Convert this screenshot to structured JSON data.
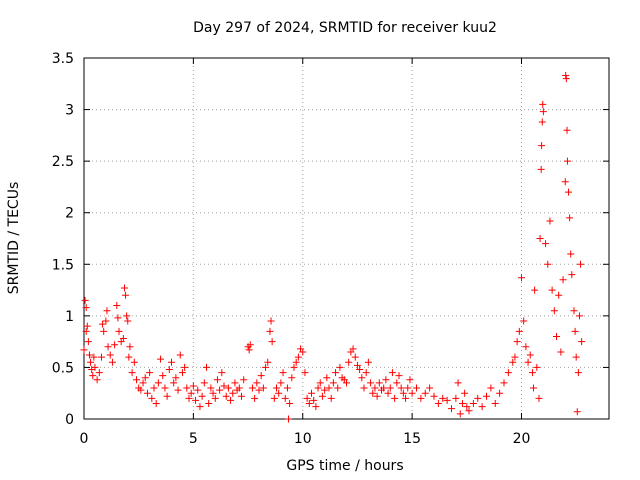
{
  "chart_data": {
    "type": "scatter",
    "title": "Day 297 of 2024, SRMTID for receiver kuu2",
    "xlabel": "GPS time / hours",
    "ylabel": "SRMTID / TECUs",
    "xlim": [
      0,
      24
    ],
    "ylim": [
      0,
      3.5
    ],
    "xticks": [
      0,
      5,
      10,
      15,
      20
    ],
    "xtick_labels": [
      "0",
      "5",
      "10",
      "15",
      "20"
    ],
    "yticks": [
      0,
      0.5,
      1,
      1.5,
      2,
      2.5,
      3,
      3.5
    ],
    "ytick_labels": [
      "0",
      "0.5",
      "1",
      "1.5",
      "2",
      "2.5",
      "3",
      "3.5"
    ],
    "grid": true,
    "marker": "plus",
    "color": "#ff0000",
    "series": [
      {
        "name": "SRMTID",
        "points": [
          [
            0.0,
            0.67
          ],
          [
            0.05,
            1.15
          ],
          [
            0.1,
            1.08
          ],
          [
            0.1,
            0.85
          ],
          [
            0.15,
            0.9
          ],
          [
            0.2,
            0.75
          ],
          [
            0.25,
            0.62
          ],
          [
            0.3,
            0.55
          ],
          [
            0.35,
            0.48
          ],
          [
            0.4,
            0.42
          ],
          [
            0.45,
            0.6
          ],
          [
            0.5,
            0.5
          ],
          [
            0.6,
            0.38
          ],
          [
            0.7,
            0.45
          ],
          [
            0.8,
            0.6
          ],
          [
            0.85,
            0.92
          ],
          [
            0.9,
            0.85
          ],
          [
            1.0,
            0.95
          ],
          [
            1.05,
            1.05
          ],
          [
            1.1,
            0.7
          ],
          [
            1.2,
            0.62
          ],
          [
            1.3,
            0.55
          ],
          [
            1.4,
            0.72
          ],
          [
            1.5,
            1.1
          ],
          [
            1.55,
            0.98
          ],
          [
            1.6,
            0.85
          ],
          [
            1.7,
            0.75
          ],
          [
            1.8,
            0.78
          ],
          [
            1.85,
            1.27
          ],
          [
            1.9,
            1.2
          ],
          [
            1.95,
            1.0
          ],
          [
            2.0,
            0.95
          ],
          [
            2.05,
            0.6
          ],
          [
            2.1,
            0.7
          ],
          [
            2.2,
            0.45
          ],
          [
            2.3,
            0.55
          ],
          [
            2.4,
            0.38
          ],
          [
            2.5,
            0.3
          ],
          [
            2.6,
            0.28
          ],
          [
            2.7,
            0.35
          ],
          [
            2.8,
            0.4
          ],
          [
            2.9,
            0.25
          ],
          [
            3.0,
            0.45
          ],
          [
            3.1,
            0.2
          ],
          [
            3.2,
            0.3
          ],
          [
            3.3,
            0.15
          ],
          [
            3.4,
            0.35
          ],
          [
            3.5,
            0.58
          ],
          [
            3.6,
            0.42
          ],
          [
            3.7,
            0.3
          ],
          [
            3.8,
            0.22
          ],
          [
            3.9,
            0.48
          ],
          [
            4.0,
            0.55
          ],
          [
            4.1,
            0.35
          ],
          [
            4.2,
            0.4
          ],
          [
            4.3,
            0.28
          ],
          [
            4.4,
            0.62
          ],
          [
            4.5,
            0.45
          ],
          [
            4.6,
            0.5
          ],
          [
            4.7,
            0.3
          ],
          [
            4.8,
            0.2
          ],
          [
            4.9,
            0.25
          ],
          [
            5.0,
            0.32
          ],
          [
            5.1,
            0.18
          ],
          [
            5.2,
            0.28
          ],
          [
            5.3,
            0.12
          ],
          [
            5.4,
            0.22
          ],
          [
            5.5,
            0.35
          ],
          [
            5.6,
            0.5
          ],
          [
            5.7,
            0.15
          ],
          [
            5.8,
            0.3
          ],
          [
            5.9,
            0.25
          ],
          [
            6.0,
            0.2
          ],
          [
            6.1,
            0.38
          ],
          [
            6.2,
            0.28
          ],
          [
            6.3,
            0.45
          ],
          [
            6.4,
            0.32
          ],
          [
            6.5,
            0.22
          ],
          [
            6.6,
            0.3
          ],
          [
            6.7,
            0.18
          ],
          [
            6.8,
            0.25
          ],
          [
            6.9,
            0.35
          ],
          [
            7.0,
            0.28
          ],
          [
            7.1,
            0.3
          ],
          [
            7.2,
            0.22
          ],
          [
            7.3,
            0.38
          ],
          [
            7.5,
            0.7
          ],
          [
            7.55,
            0.67
          ],
          [
            7.6,
            0.72
          ],
          [
            7.7,
            0.3
          ],
          [
            7.8,
            0.2
          ],
          [
            7.9,
            0.35
          ],
          [
            8.0,
            0.28
          ],
          [
            8.1,
            0.42
          ],
          [
            8.2,
            0.3
          ],
          [
            8.3,
            0.5
          ],
          [
            8.4,
            0.55
          ],
          [
            8.5,
            0.85
          ],
          [
            8.55,
            0.95
          ],
          [
            8.6,
            0.75
          ],
          [
            8.7,
            0.2
          ],
          [
            8.8,
            0.3
          ],
          [
            8.9,
            0.25
          ],
          [
            9.0,
            0.35
          ],
          [
            9.1,
            0.45
          ],
          [
            9.2,
            0.2
          ],
          [
            9.3,
            0.3
          ],
          [
            9.35,
            0.0
          ],
          [
            9.4,
            0.15
          ],
          [
            9.5,
            0.4
          ],
          [
            9.6,
            0.5
          ],
          [
            9.7,
            0.55
          ],
          [
            9.8,
            0.6
          ],
          [
            9.9,
            0.68
          ],
          [
            10.0,
            0.65
          ],
          [
            10.1,
            0.45
          ],
          [
            10.2,
            0.2
          ],
          [
            10.3,
            0.15
          ],
          [
            10.4,
            0.25
          ],
          [
            10.5,
            0.18
          ],
          [
            10.6,
            0.12
          ],
          [
            10.7,
            0.3
          ],
          [
            10.8,
            0.35
          ],
          [
            10.9,
            0.22
          ],
          [
            11.0,
            0.28
          ],
          [
            11.1,
            0.4
          ],
          [
            11.2,
            0.3
          ],
          [
            11.3,
            0.2
          ],
          [
            11.4,
            0.35
          ],
          [
            11.5,
            0.45
          ],
          [
            11.6,
            0.3
          ],
          [
            11.7,
            0.5
          ],
          [
            11.8,
            0.4
          ],
          [
            11.9,
            0.38
          ],
          [
            12.0,
            0.35
          ],
          [
            12.1,
            0.55
          ],
          [
            12.2,
            0.65
          ],
          [
            12.3,
            0.68
          ],
          [
            12.4,
            0.6
          ],
          [
            12.5,
            0.52
          ],
          [
            12.6,
            0.48
          ],
          [
            12.7,
            0.4
          ],
          [
            12.8,
            0.3
          ],
          [
            12.9,
            0.45
          ],
          [
            13.0,
            0.55
          ],
          [
            13.1,
            0.35
          ],
          [
            13.2,
            0.25
          ],
          [
            13.3,
            0.3
          ],
          [
            13.4,
            0.22
          ],
          [
            13.5,
            0.35
          ],
          [
            13.6,
            0.28
          ],
          [
            13.7,
            0.3
          ],
          [
            13.8,
            0.38
          ],
          [
            13.9,
            0.25
          ],
          [
            14.0,
            0.3
          ],
          [
            14.1,
            0.45
          ],
          [
            14.2,
            0.2
          ],
          [
            14.3,
            0.35
          ],
          [
            14.4,
            0.42
          ],
          [
            14.5,
            0.3
          ],
          [
            14.6,
            0.25
          ],
          [
            14.7,
            0.2
          ],
          [
            14.8,
            0.3
          ],
          [
            14.9,
            0.38
          ],
          [
            15.0,
            0.25
          ],
          [
            15.2,
            0.3
          ],
          [
            15.4,
            0.2
          ],
          [
            15.6,
            0.25
          ],
          [
            15.8,
            0.3
          ],
          [
            16.0,
            0.22
          ],
          [
            16.2,
            0.15
          ],
          [
            16.4,
            0.2
          ],
          [
            16.6,
            0.18
          ],
          [
            16.8,
            0.1
          ],
          [
            17.0,
            0.2
          ],
          [
            17.1,
            0.35
          ],
          [
            17.2,
            0.05
          ],
          [
            17.3,
            0.15
          ],
          [
            17.4,
            0.25
          ],
          [
            17.5,
            0.12
          ],
          [
            17.6,
            0.08
          ],
          [
            17.8,
            0.15
          ],
          [
            18.0,
            0.2
          ],
          [
            18.2,
            0.12
          ],
          [
            18.4,
            0.22
          ],
          [
            18.6,
            0.3
          ],
          [
            18.8,
            0.15
          ],
          [
            19.0,
            0.25
          ],
          [
            19.2,
            0.35
          ],
          [
            19.4,
            0.45
          ],
          [
            19.6,
            0.55
          ],
          [
            19.7,
            0.6
          ],
          [
            19.8,
            0.75
          ],
          [
            19.9,
            0.85
          ],
          [
            20.0,
            1.37
          ],
          [
            20.1,
            0.95
          ],
          [
            20.2,
            0.7
          ],
          [
            20.3,
            0.55
          ],
          [
            20.4,
            0.62
          ],
          [
            20.5,
            0.45
          ],
          [
            20.55,
            0.3
          ],
          [
            20.6,
            1.25
          ],
          [
            20.7,
            0.5
          ],
          [
            20.8,
            0.2
          ],
          [
            20.85,
            1.75
          ],
          [
            20.9,
            2.42
          ],
          [
            20.92,
            2.65
          ],
          [
            20.95,
            2.88
          ],
          [
            20.97,
            3.05
          ],
          [
            21.0,
            2.98
          ],
          [
            21.1,
            1.7
          ],
          [
            21.2,
            1.5
          ],
          [
            21.3,
            1.92
          ],
          [
            21.4,
            1.25
          ],
          [
            21.5,
            1.05
          ],
          [
            21.6,
            0.8
          ],
          [
            21.7,
            1.2
          ],
          [
            21.8,
            0.65
          ],
          [
            21.9,
            1.35
          ],
          [
            22.0,
            2.3
          ],
          [
            22.02,
            3.33
          ],
          [
            22.05,
            3.3
          ],
          [
            22.08,
            2.8
          ],
          [
            22.1,
            2.5
          ],
          [
            22.15,
            2.2
          ],
          [
            22.2,
            1.95
          ],
          [
            22.25,
            1.6
          ],
          [
            22.3,
            1.4
          ],
          [
            22.4,
            1.05
          ],
          [
            22.45,
            0.85
          ],
          [
            22.5,
            0.6
          ],
          [
            22.55,
            0.07
          ],
          [
            22.6,
            0.45
          ],
          [
            22.65,
            1.0
          ],
          [
            22.7,
            1.5
          ],
          [
            22.75,
            0.75
          ]
        ]
      }
    ]
  }
}
